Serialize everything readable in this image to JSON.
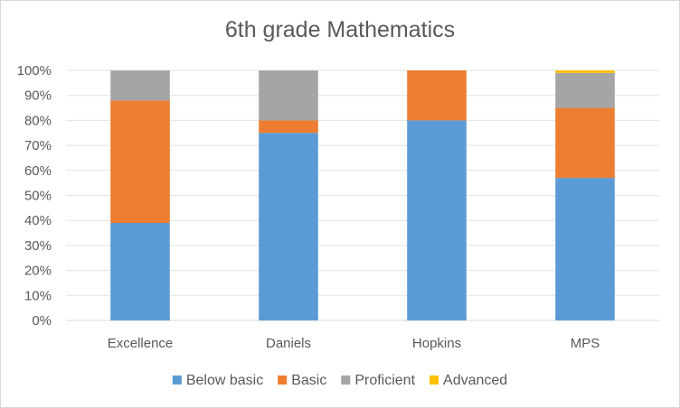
{
  "chart_data": {
    "type": "bar",
    "stacked": true,
    "title": "6th grade Mathematics",
    "xlabel": "",
    "ylabel": "",
    "ylim": [
      0,
      100
    ],
    "y_ticks": [
      "0%",
      "10%",
      "20%",
      "30%",
      "40%",
      "50%",
      "60%",
      "70%",
      "80%",
      "90%",
      "100%"
    ],
    "categories": [
      "Excellence",
      "Daniels",
      "Hopkins",
      "MPS"
    ],
    "series": [
      {
        "name": "Below basic",
        "color": "#5b9bd5",
        "values": [
          39,
          75,
          80,
          57
        ]
      },
      {
        "name": "Basic",
        "color": "#ed7d31",
        "values": [
          49,
          5,
          20,
          28
        ]
      },
      {
        "name": "Proficient",
        "color": "#a5a5a5",
        "values": [
          12,
          20,
          0,
          14
        ]
      },
      {
        "name": "Advanced",
        "color": "#ffc000",
        "values": [
          0,
          0,
          0,
          1
        ]
      }
    ],
    "grid": true,
    "legend": "bottom"
  }
}
